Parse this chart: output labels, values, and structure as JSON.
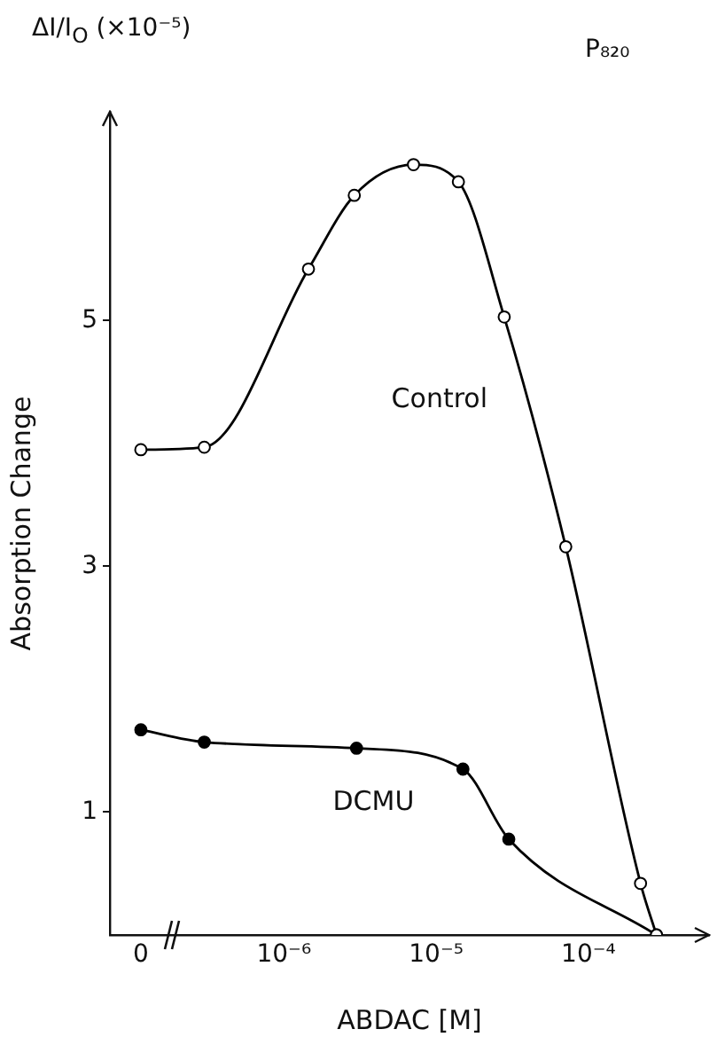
{
  "chart_data": {
    "type": "line",
    "xlabel": "ABDAC [M]",
    "ylabel": "Absorption Change",
    "annotations": [
      "ΔI/I$_{O}$ (×10⁻⁵)",
      "P₈₂₀"
    ],
    "log": "x",
    "xlim": [
      7.2e-08,
      0.00062
    ],
    "xticks": [
      {
        "value": 1.15e-07,
        "label": "0"
      },
      {
        "value": 1e-06,
        "label": "10⁻⁶"
      },
      {
        "value": 1e-05,
        "label": "10⁻⁵"
      },
      {
        "value": 0.0001,
        "label": "10⁻⁴"
      }
    ],
    "ylim": [
      0,
      6.7
    ],
    "yticks": [
      1,
      3,
      5
    ],
    "grid": false,
    "legend": false,
    "marker": "circle",
    "series": [
      {
        "name": "Control",
        "color": "#000000",
        "x": [
          1.15e-07,
          3e-07,
          1.45e-06,
          2.9e-06,
          7.1e-06,
          1.4e-05,
          2.8e-05,
          7.1e-05,
          0.00022,
          0.00028
        ],
        "values": [
          3.95,
          3.97,
          5.42,
          6.02,
          6.27,
          6.13,
          5.03,
          3.16,
          0.42,
          0
        ]
      },
      {
        "name": "DCMU",
        "color": "#000000",
        "x": [
          1.15e-07,
          3e-07,
          3e-06,
          1.5e-05,
          3e-05,
          0.00028
        ],
        "values": [
          1.67,
          1.57,
          1.52,
          1.35,
          0.78,
          0
        ]
      }
    ]
  }
}
